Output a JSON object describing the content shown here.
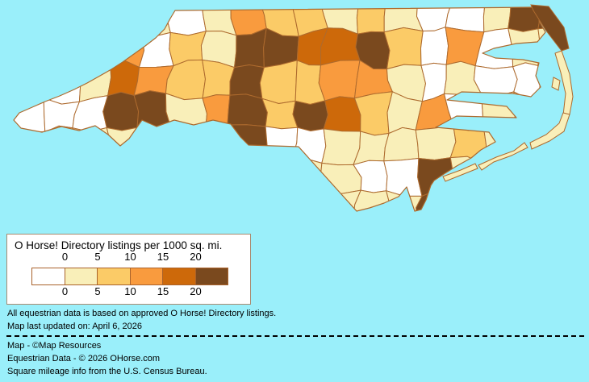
{
  "colors": {
    "water": "#9AEFFA",
    "county_border": "#AD6A2E",
    "legend_box_border": "#A98A70",
    "swatch_border": "#A9622B",
    "text": "#000000"
  },
  "legend": {
    "title": "O Horse! Directory listings per 1000 sq. mi.",
    "ticks": [
      "0",
      "5",
      "10",
      "15",
      "20"
    ]
  },
  "notes": {
    "line1": "All equestrian data is based on approved O Horse! Directory listings.",
    "line2": "Map last updated on: April 6, 2026"
  },
  "credits": {
    "line1": "Map - ©Map Resources",
    "line2": "Equestrian Data - © 2026 OHorse.com",
    "line3": "Square mileage info from the U.S. Census Bureau."
  },
  "chart_data": {
    "type": "heatmap",
    "title": "O Horse! Directory listings per 1000 sq. mi.",
    "region": "North Carolina counties",
    "legend_position": "bottom-left",
    "breaks": [
      0,
      5,
      10,
      15,
      20
    ],
    "bin_labels": [
      "0",
      "0-5",
      "5-10",
      "10-15",
      "15-20",
      "20+"
    ],
    "palette": [
      "#FFFFFF",
      "#F9EFB9",
      "#FBCB67",
      "#F99B3E",
      "#CD690A",
      "#7A491E"
    ],
    "grid_note": "density class per map cell, 18 cols west-to-east, 7 rows north-to-south; 0=lowest bin, 5=highest bin",
    "grid": [
      [
        1,
        1,
        1,
        1,
        1,
        0,
        1,
        3,
        2,
        2,
        1,
        2,
        1,
        0,
        0,
        1,
        5,
        5
      ],
      [
        1,
        1,
        1,
        3,
        0,
        2,
        1,
        5,
        5,
        4,
        4,
        5,
        2,
        0,
        3,
        0,
        1,
        1
      ],
      [
        0,
        0,
        1,
        4,
        3,
        2,
        2,
        5,
        2,
        2,
        3,
        3,
        1,
        0,
        1,
        0,
        0,
        1
      ],
      [
        0,
        0,
        0,
        5,
        5,
        1,
        3,
        5,
        2,
        5,
        4,
        2,
        1,
        3,
        0,
        1,
        1,
        1
      ],
      [
        1,
        1,
        1,
        1,
        1,
        1,
        1,
        5,
        0,
        0,
        1,
        1,
        1,
        1,
        2,
        1,
        1,
        1
      ],
      [
        1,
        1,
        1,
        1,
        1,
        1,
        1,
        1,
        1,
        1,
        1,
        0,
        0,
        5,
        1,
        1,
        1,
        1
      ],
      [
        1,
        1,
        1,
        1,
        1,
        1,
        1,
        1,
        1,
        1,
        1,
        1,
        1,
        5,
        1,
        1,
        1,
        1
      ]
    ]
  }
}
